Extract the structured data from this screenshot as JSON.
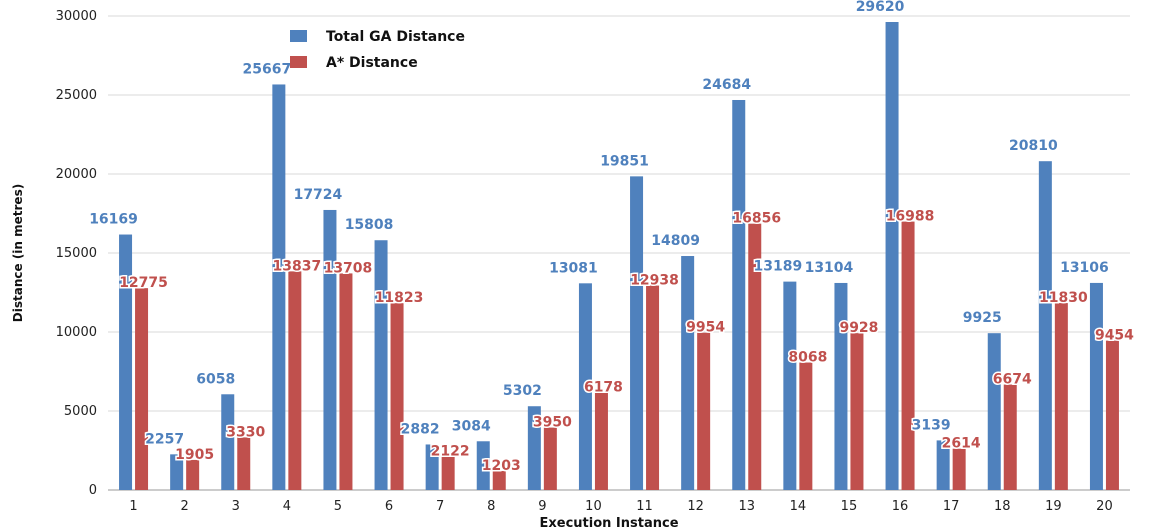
{
  "chart_data": {
    "type": "bar",
    "title": "",
    "xlabel": "Execution Instance",
    "ylabel": "Distance (in metres)",
    "ylim": [
      0,
      30000
    ],
    "yticks": [
      0,
      5000,
      10000,
      15000,
      20000,
      25000,
      30000
    ],
    "grid": true,
    "legend_position": "top-left",
    "categories": [
      "1",
      "2",
      "3",
      "4",
      "5",
      "6",
      "7",
      "8",
      "9",
      "10",
      "11",
      "12",
      "13",
      "14",
      "15",
      "16",
      "17",
      "18",
      "19",
      "20"
    ],
    "series": [
      {
        "name": "Total GA Distance",
        "color": "#4f81bd",
        "values": [
          16169,
          2257,
          6058,
          25667,
          17724,
          15808,
          2882,
          3084,
          5302,
          13081,
          19851,
          14809,
          24684,
          13189,
          13104,
          29620,
          3139,
          9925,
          20810,
          13106
        ]
      },
      {
        "name": "A* Distance",
        "color": "#c0504d",
        "values": [
          12775,
          1905,
          3330,
          13837,
          13708,
          11823,
          2122,
          1203,
          3950,
          6178,
          12938,
          9954,
          16856,
          8068,
          9928,
          16988,
          2614,
          6674,
          11830,
          9454
        ]
      }
    ]
  }
}
